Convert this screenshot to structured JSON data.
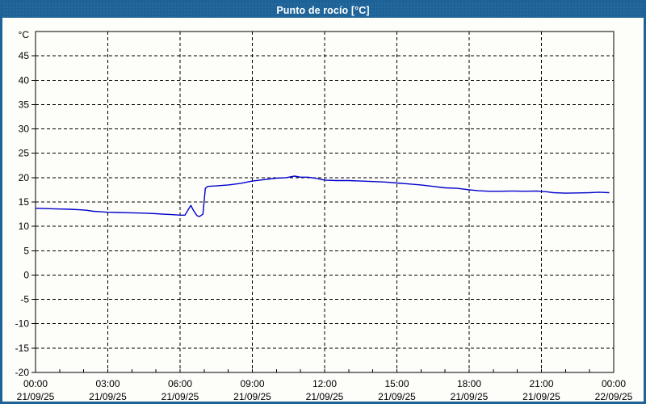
{
  "window": {
    "title": "Punto de rocío [°C]"
  },
  "colors": {
    "titlebar_bg": "#1d6397",
    "titlebar_text": "#ffffff",
    "frame_border": "#1d6397",
    "content_bg": "#fdfdfa",
    "plot_border": "#000000",
    "grid": "#000000",
    "label_text": "#000000",
    "line": "#0000cc"
  },
  "chart_data": {
    "type": "line",
    "title": "Punto de rocío [°C]",
    "y_unit_label": "°C",
    "ylim": [
      -20,
      50
    ],
    "xlim_hours": [
      0,
      24
    ],
    "grid": "dashed",
    "legend": "none",
    "y_ticks": [
      45,
      40,
      35,
      30,
      25,
      20,
      15,
      10,
      5,
      0,
      -5,
      -10,
      -15,
      -20
    ],
    "x_ticks": [
      {
        "hour": 0,
        "time": "00:00",
        "date": "21/09/25"
      },
      {
        "hour": 3,
        "time": "03:00",
        "date": "21/09/25"
      },
      {
        "hour": 6,
        "time": "06:00",
        "date": "21/09/25"
      },
      {
        "hour": 9,
        "time": "09:00",
        "date": "21/09/25"
      },
      {
        "hour": 12,
        "time": "12:00",
        "date": "21/09/25"
      },
      {
        "hour": 15,
        "time": "15:00",
        "date": "21/09/25"
      },
      {
        "hour": 18,
        "time": "18:00",
        "date": "21/09/25"
      },
      {
        "hour": 21,
        "time": "21:00",
        "date": "21/09/25"
      },
      {
        "hour": 24,
        "time": "00:00",
        "date": "22/09/25"
      }
    ],
    "minor_x_tick_every_hours": 1,
    "series": [
      {
        "name": "Punto de rocío",
        "color": "#0000cc",
        "points": [
          [
            0,
            13.7
          ],
          [
            0.3,
            13.65
          ],
          [
            0.7,
            13.6
          ],
          [
            1,
            13.55
          ],
          [
            1.4,
            13.5
          ],
          [
            1.8,
            13.4
          ],
          [
            2.1,
            13.3
          ],
          [
            2.4,
            13.1
          ],
          [
            2.7,
            13.0
          ],
          [
            3,
            12.9
          ],
          [
            3.4,
            12.85
          ],
          [
            3.8,
            12.8
          ],
          [
            4.2,
            12.75
          ],
          [
            4.6,
            12.7
          ],
          [
            5,
            12.6
          ],
          [
            5.3,
            12.5
          ],
          [
            5.7,
            12.4
          ],
          [
            6,
            12.3
          ],
          [
            6.2,
            12.3
          ],
          [
            6.35,
            13.5
          ],
          [
            6.45,
            14.3
          ],
          [
            6.55,
            13.3
          ],
          [
            6.7,
            12.2
          ],
          [
            6.8,
            12.0
          ],
          [
            6.95,
            12.5
          ],
          [
            7.05,
            17.8
          ],
          [
            7.15,
            18.2
          ],
          [
            7.5,
            18.3
          ],
          [
            8,
            18.5
          ],
          [
            8.5,
            18.8
          ],
          [
            9,
            19.3
          ],
          [
            9.5,
            19.6
          ],
          [
            10,
            19.9
          ],
          [
            10.4,
            20.0
          ],
          [
            10.75,
            20.3
          ],
          [
            11,
            20.1
          ],
          [
            11.3,
            20.1
          ],
          [
            11.6,
            19.9
          ],
          [
            12,
            19.5
          ],
          [
            12.5,
            19.4
          ],
          [
            13,
            19.4
          ],
          [
            13.5,
            19.3
          ],
          [
            14,
            19.2
          ],
          [
            14.5,
            19.1
          ],
          [
            15,
            18.9
          ],
          [
            15.5,
            18.7
          ],
          [
            16,
            18.5
          ],
          [
            16.5,
            18.2
          ],
          [
            17,
            17.9
          ],
          [
            17.5,
            17.8
          ],
          [
            18,
            17.5
          ],
          [
            18.4,
            17.3
          ],
          [
            18.8,
            17.2
          ],
          [
            19.3,
            17.2
          ],
          [
            19.8,
            17.25
          ],
          [
            20.3,
            17.2
          ],
          [
            20.8,
            17.25
          ],
          [
            21.2,
            17.1
          ],
          [
            21.5,
            16.9
          ],
          [
            22,
            16.8
          ],
          [
            22.5,
            16.85
          ],
          [
            23,
            16.9
          ],
          [
            23.4,
            17.0
          ],
          [
            23.8,
            16.9
          ]
        ]
      }
    ]
  }
}
